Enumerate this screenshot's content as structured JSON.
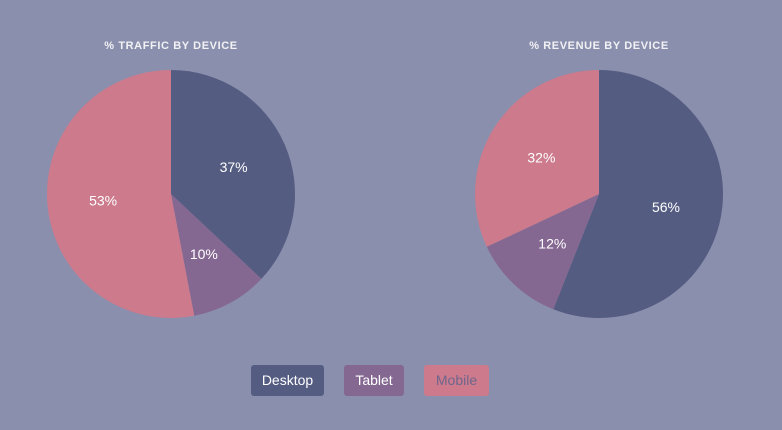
{
  "colors": {
    "background": "#8a8fad",
    "desktop": "#545c82",
    "tablet": "#856891",
    "mobile": "#cc7a8c"
  },
  "chart_data": [
    {
      "type": "pie",
      "title": "% TRAFFIC BY DEVICE",
      "start_angle_deg": 0,
      "direction": "clockwise",
      "slices": [
        {
          "name": "Desktop",
          "value": 37,
          "label": "37%",
          "color": "#545c82"
        },
        {
          "name": "Tablet",
          "value": 10,
          "label": "10%",
          "color": "#856891"
        },
        {
          "name": "Mobile",
          "value": 53,
          "label": "53%",
          "color": "#cc7a8c"
        }
      ]
    },
    {
      "type": "pie",
      "title": "% REVENUE BY DEVICE",
      "start_angle_deg": 0,
      "direction": "clockwise",
      "slices": [
        {
          "name": "Desktop",
          "value": 56,
          "label": "56%",
          "color": "#545c82"
        },
        {
          "name": "Tablet",
          "value": 12,
          "label": "12%",
          "color": "#856891"
        },
        {
          "name": "Mobile",
          "value": 32,
          "label": "32%",
          "color": "#cc7a8c"
        }
      ]
    }
  ],
  "legend": {
    "items": [
      {
        "label": "Desktop",
        "color": "#545c82"
      },
      {
        "label": "Tablet",
        "color": "#856891"
      },
      {
        "label": "Mobile",
        "color": "#cc7a8c"
      }
    ]
  }
}
